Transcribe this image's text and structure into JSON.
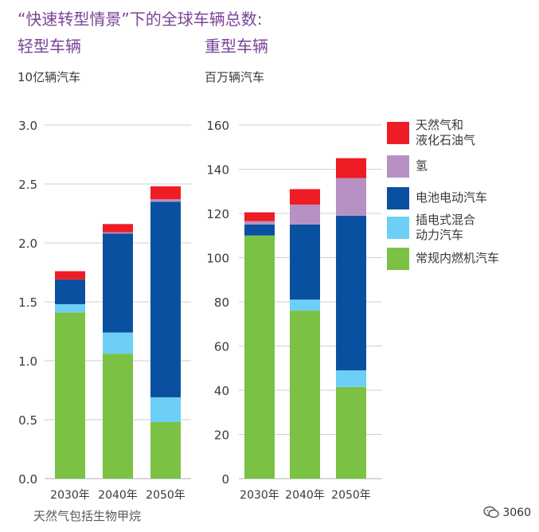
{
  "title": "“快速转型情景”下的全球车辆总数:",
  "footnote": "天然气包括生物甲烷",
  "watermark": "3060",
  "colors": {
    "gas": "#ee1c25",
    "hydrogen": "#b891c4",
    "bev": "#0a50a0",
    "phev": "#6dcff6",
    "ice": "#7bc143",
    "grid": "#cfcfcf",
    "title": "#7b4397"
  },
  "legend": [
    {
      "key": "gas",
      "label": "天然气和\n液化石油气"
    },
    {
      "key": "hydrogen",
      "label": "氢"
    },
    {
      "key": "bev",
      "label": "电池电动汽车"
    },
    {
      "key": "phev",
      "label": "插电式混合\n动力汽车"
    },
    {
      "key": "ice",
      "label": "常规内燃机汽车"
    }
  ],
  "chart_data": [
    {
      "type": "bar",
      "stacked": true,
      "title": "轻型车辆",
      "ylabel": "10亿辆汽车",
      "categories": [
        "2030年",
        "2040年",
        "2050年"
      ],
      "ylim": [
        0,
        3.0
      ],
      "yticks": [
        0,
        0.5,
        1.0,
        1.5,
        2.0,
        2.5,
        3.0
      ],
      "ytick_labels": [
        "0.0",
        "0.5",
        "1.0",
        "1.5",
        "2.0",
        "2.5",
        "3.0"
      ],
      "series": [
        {
          "key": "ice",
          "name": "常规内燃机汽车",
          "values": [
            1.41,
            1.06,
            0.48
          ]
        },
        {
          "key": "phev",
          "name": "插电式混合动力汽车",
          "values": [
            0.07,
            0.18,
            0.21
          ]
        },
        {
          "key": "bev",
          "name": "电池电动汽车",
          "values": [
            0.21,
            0.84,
            1.66
          ]
        },
        {
          "key": "hydrogen",
          "name": "氢",
          "values": [
            0.0,
            0.01,
            0.02
          ]
        },
        {
          "key": "gas",
          "name": "天然气和液化石油气",
          "values": [
            0.07,
            0.07,
            0.11
          ]
        }
      ]
    },
    {
      "type": "bar",
      "stacked": true,
      "title": "重型车辆",
      "ylabel": "百万辆汽车",
      "categories": [
        "2030年",
        "2040年",
        "2050年"
      ],
      "ylim": [
        0,
        160
      ],
      "yticks": [
        0,
        20,
        40,
        60,
        80,
        100,
        120,
        140,
        160
      ],
      "ytick_labels": [
        "0",
        "20",
        "40",
        "60",
        "80",
        "100",
        "120",
        "140",
        "160"
      ],
      "series": [
        {
          "key": "ice",
          "name": "常规内燃机汽车",
          "values": [
            110,
            76,
            41.5
          ]
        },
        {
          "key": "phev",
          "name": "插电式混合动力汽车",
          "values": [
            0,
            5,
            7.5
          ]
        },
        {
          "key": "bev",
          "name": "电池电动汽车",
          "values": [
            5,
            34,
            70
          ]
        },
        {
          "key": "hydrogen",
          "name": "氢",
          "values": [
            1.5,
            9,
            17
          ]
        },
        {
          "key": "gas",
          "name": "天然气和液化石油气",
          "values": [
            4,
            7,
            9
          ]
        }
      ]
    }
  ]
}
